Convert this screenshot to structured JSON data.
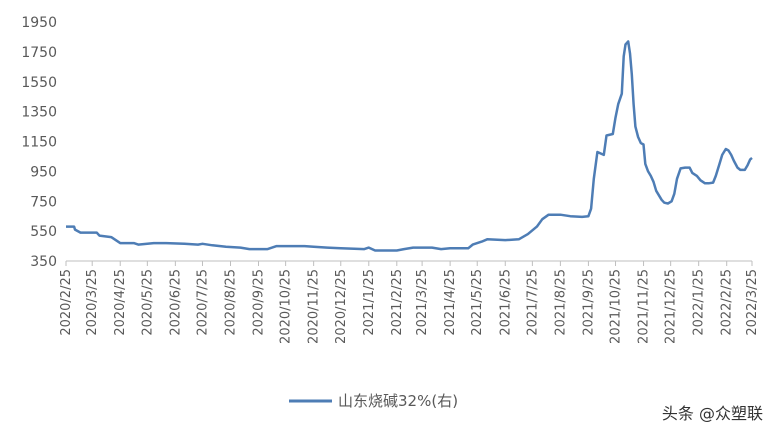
{
  "chart_data": {
    "type": "line",
    "title": "",
    "xlabel": "",
    "ylabel": "",
    "ylim": [
      350,
      1950
    ],
    "yticks": [
      350,
      550,
      750,
      950,
      1150,
      1350,
      1550,
      1750,
      1950
    ],
    "x_ticks": [
      "2020/2/25",
      "2020/3/25",
      "2020/4/25",
      "2020/5/25",
      "2020/6/25",
      "2020/7/25",
      "2020/8/25",
      "2020/9/25",
      "2020/10/25",
      "2020/11/25",
      "2020/12/25",
      "2021/1/25",
      "2021/2/25",
      "2021/3/25",
      "2021/4/25",
      "2021/5/25",
      "2021/6/25",
      "2021/7/25",
      "2021/8/25",
      "2021/9/25",
      "2021/10/25",
      "2021/11/25",
      "2021/12/25",
      "2022/1/25",
      "2022/2/25",
      "2022/3/25"
    ],
    "grid": false,
    "legend_position": "bottom",
    "color": "#4E7DB5",
    "series": [
      {
        "name": "山东烧碱32%(右)",
        "points": [
          [
            "2020-02-25",
            580
          ],
          [
            "2020-03-05",
            580
          ],
          [
            "2020-03-06",
            560
          ],
          [
            "2020-03-12",
            540
          ],
          [
            "2020-03-30",
            540
          ],
          [
            "2020-04-02",
            520
          ],
          [
            "2020-04-15",
            510
          ],
          [
            "2020-04-20",
            490
          ],
          [
            "2020-04-25",
            470
          ],
          [
            "2020-05-10",
            470
          ],
          [
            "2020-05-15",
            460
          ],
          [
            "2020-05-25",
            465
          ],
          [
            "2020-06-01",
            470
          ],
          [
            "2020-06-15",
            470
          ],
          [
            "2020-07-05",
            465
          ],
          [
            "2020-07-20",
            460
          ],
          [
            "2020-07-25",
            465
          ],
          [
            "2020-08-05",
            455
          ],
          [
            "2020-08-20",
            445
          ],
          [
            "2020-09-05",
            440
          ],
          [
            "2020-09-15",
            430
          ],
          [
            "2020-10-05",
            430
          ],
          [
            "2020-10-15",
            450
          ],
          [
            "2020-11-15",
            450
          ],
          [
            "2020-11-25",
            445
          ],
          [
            "2020-12-10",
            440
          ],
          [
            "2020-12-25",
            435
          ],
          [
            "2021-01-20",
            430
          ],
          [
            "2021-01-25",
            440
          ],
          [
            "2021-02-01",
            420
          ],
          [
            "2021-02-25",
            420
          ],
          [
            "2021-03-05",
            430
          ],
          [
            "2021-03-15",
            440
          ],
          [
            "2021-04-05",
            440
          ],
          [
            "2021-04-15",
            430
          ],
          [
            "2021-04-25",
            435
          ],
          [
            "2021-05-15",
            435
          ],
          [
            "2021-05-20",
            460
          ],
          [
            "2021-05-30",
            480
          ],
          [
            "2021-06-05",
            495
          ],
          [
            "2021-06-25",
            490
          ],
          [
            "2021-07-10",
            495
          ],
          [
            "2021-07-20",
            530
          ],
          [
            "2021-07-30",
            580
          ],
          [
            "2021-08-05",
            630
          ],
          [
            "2021-08-12",
            660
          ],
          [
            "2021-08-25",
            660
          ],
          [
            "2021-09-05",
            650
          ],
          [
            "2021-09-18",
            645
          ],
          [
            "2021-09-25",
            650
          ],
          [
            "2021-09-28",
            700
          ],
          [
            "2021-10-01",
            900
          ],
          [
            "2021-10-05",
            1080
          ],
          [
            "2021-10-12",
            1060
          ],
          [
            "2021-10-15",
            1190
          ],
          [
            "2021-10-22",
            1200
          ],
          [
            "2021-10-25",
            1310
          ],
          [
            "2021-10-28",
            1400
          ],
          [
            "2021-11-01",
            1470
          ],
          [
            "2021-11-03",
            1720
          ],
          [
            "2021-11-05",
            1800
          ],
          [
            "2021-11-08",
            1820
          ],
          [
            "2021-11-10",
            1740
          ],
          [
            "2021-11-12",
            1600
          ],
          [
            "2021-11-14",
            1400
          ],
          [
            "2021-11-16",
            1250
          ],
          [
            "2021-11-19",
            1180
          ],
          [
            "2021-11-22",
            1140
          ],
          [
            "2021-11-25",
            1130
          ],
          [
            "2021-11-27",
            1000
          ],
          [
            "2021-11-30",
            950
          ],
          [
            "2021-12-03",
            920
          ],
          [
            "2021-12-06",
            880
          ],
          [
            "2021-12-09",
            820
          ],
          [
            "2021-12-12",
            790
          ],
          [
            "2021-12-15",
            760
          ],
          [
            "2021-12-18",
            740
          ],
          [
            "2021-12-22",
            735
          ],
          [
            "2021-12-26",
            750
          ],
          [
            "2021-12-29",
            800
          ],
          [
            "2022-01-01",
            900
          ],
          [
            "2022-01-05",
            970
          ],
          [
            "2022-01-10",
            975
          ],
          [
            "2022-01-15",
            975
          ],
          [
            "2022-01-18",
            940
          ],
          [
            "2022-01-23",
            920
          ],
          [
            "2022-01-27",
            890
          ],
          [
            "2022-02-01",
            870
          ],
          [
            "2022-02-05",
            870
          ],
          [
            "2022-02-10",
            875
          ],
          [
            "2022-02-13",
            920
          ],
          [
            "2022-02-17",
            1000
          ],
          [
            "2022-02-20",
            1060
          ],
          [
            "2022-02-24",
            1100
          ],
          [
            "2022-02-27",
            1090
          ],
          [
            "2022-03-02",
            1060
          ],
          [
            "2022-03-05",
            1020
          ],
          [
            "2022-03-09",
            975
          ],
          [
            "2022-03-12",
            960
          ],
          [
            "2022-03-17",
            960
          ],
          [
            "2022-03-20",
            990
          ],
          [
            "2022-03-23",
            1030
          ],
          [
            "2022-03-25",
            1040
          ]
        ]
      }
    ]
  },
  "legend": {
    "label": "山东烧碱32%(右)"
  },
  "watermark": {
    "text": "头条 @众塑联"
  }
}
